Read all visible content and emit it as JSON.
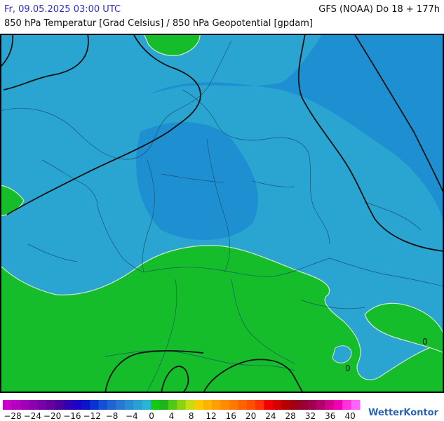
{
  "header": {
    "valid_time": "Fr, 09.05.2025 03:00 UTC",
    "model_run": "GFS (NOAA) Do 18 + 177h",
    "parameter": "850 hPa Temperatur [Grad Celsius] / 850 hPa Geopotential [gpdam]"
  },
  "map": {
    "contour_labels": [
      "0",
      "0"
    ]
  },
  "legend": {
    "ticks": [
      "−28",
      "−24",
      "−20",
      "−16",
      "−12",
      "−8",
      "−4",
      "0",
      "4",
      "8",
      "12",
      "16",
      "20",
      "24",
      "28",
      "32",
      "36",
      "40"
    ],
    "colors": [
      "#c800c8",
      "#b400c0",
      "#a000b8",
      "#8c00b0",
      "#7800a8",
      "#6400a0",
      "#4b00a0",
      "#3200b4",
      "#1e00c8",
      "#0a14c8",
      "#0a32d2",
      "#1450d2",
      "#1e64d2",
      "#2878d2",
      "#288cd2",
      "#28a0d2",
      "#28b4d2",
      "#14c814",
      "#1eb41e",
      "#50c814",
      "#8cd214",
      "#c8dc14",
      "#ffc800",
      "#ffb400",
      "#ffa000",
      "#ff8c00",
      "#ff7800",
      "#ff6400",
      "#ff5000",
      "#ff3200",
      "#f00000",
      "#d20000",
      "#b40000",
      "#a00014",
      "#960032",
      "#a00050",
      "#b4006e",
      "#d2008c",
      "#f000b4",
      "#ff32dc",
      "#ff64ff"
    ]
  },
  "brand": "WetterKontor"
}
